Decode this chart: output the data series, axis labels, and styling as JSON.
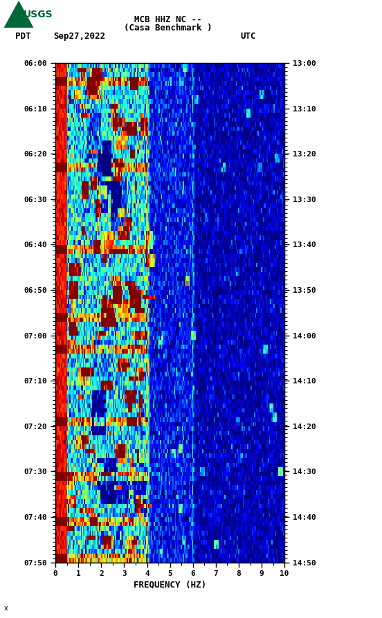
{
  "title_line1": "MCB HHZ NC --",
  "title_line2": "(Casa Benchmark )",
  "left_label": "PDT",
  "date_label": "Sep27,2022",
  "right_label": "UTC",
  "xlabel": "FREQUENCY (HZ)",
  "left_yticks": [
    "06:00",
    "06:10",
    "06:20",
    "06:30",
    "06:40",
    "06:50",
    "07:00",
    "07:10",
    "07:20",
    "07:30",
    "07:40",
    "07:50"
  ],
  "right_yticks": [
    "13:00",
    "13:10",
    "13:20",
    "13:30",
    "13:40",
    "13:50",
    "14:00",
    "14:10",
    "14:20",
    "14:30",
    "14:40",
    "14:50"
  ],
  "xticks": [
    0,
    1,
    2,
    3,
    4,
    5,
    6,
    7,
    8,
    9,
    10
  ],
  "freq_min": 0,
  "freq_max": 10,
  "time_steps": 110,
  "freq_steps": 200,
  "background_color": "#ffffff",
  "usgs_green": "#006838",
  "fig_width": 5.52,
  "fig_height": 8.93,
  "dpi": 100,
  "noise_seed": 42
}
